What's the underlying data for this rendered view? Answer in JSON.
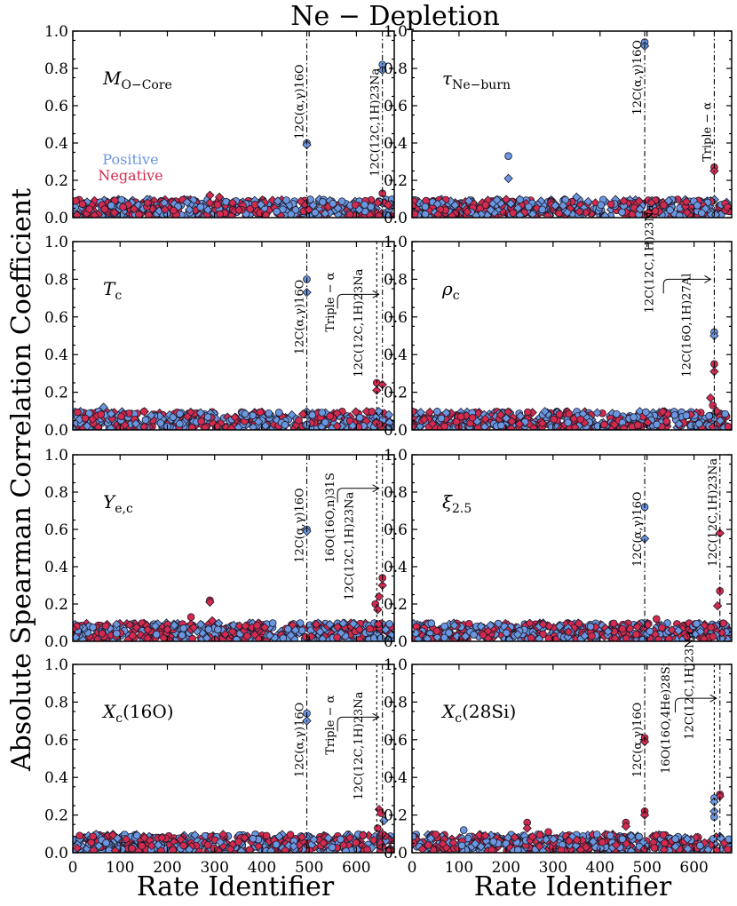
{
  "title": "Ne − Depletion",
  "xlabel": "Rate Identifier",
  "ylabel": "Absolute Spearman Correlation Coefficient",
  "legend": {
    "positive": "Positive",
    "negative": "Negative"
  },
  "colors": {
    "positive": "#6b96e0",
    "negative": "#d42a4e",
    "edge": "#1a1a2a"
  },
  "axes": {
    "xlim": [
      0,
      680
    ],
    "ylim": [
      0,
      1.0
    ],
    "xticks": [
      "0",
      "100",
      "200",
      "300",
      "400",
      "500",
      "600"
    ],
    "xtick_values": [
      0,
      100,
      200,
      300,
      400,
      500,
      600
    ],
    "yticks": [
      "0.0",
      "0.2",
      "0.4",
      "0.6",
      "0.8",
      "1.0"
    ],
    "ytick_values": [
      0,
      0.2,
      0.4,
      0.6,
      0.8,
      1.0
    ]
  },
  "chart_data": [
    {
      "type": "scatter",
      "panel": "M_O-Core",
      "label_main": "M",
      "label_sub": "O−Core",
      "vlines": [
        {
          "x": 495,
          "style": "dashdot"
        },
        {
          "x": 655,
          "style": "dashdot"
        }
      ],
      "annotations": [
        {
          "text": "12C(α,γ)16O",
          "x": 495,
          "y": 0.42
        },
        {
          "text": "12C(12C,1H)23Na",
          "x": 655,
          "y": 0.22
        }
      ],
      "highlights": [
        {
          "x": 495,
          "y": 0.4,
          "sign": "positive",
          "marker": "circle"
        },
        {
          "x": 495,
          "y": 0.39,
          "sign": "positive",
          "marker": "diamond"
        },
        {
          "x": 655,
          "y": 0.82,
          "sign": "positive",
          "marker": "circle"
        },
        {
          "x": 655,
          "y": 0.79,
          "sign": "positive",
          "marker": "diamond"
        },
        {
          "x": 655,
          "y": 0.13,
          "sign": "negative",
          "marker": "circle"
        },
        {
          "x": 290,
          "y": 0.12,
          "sign": "negative",
          "marker": "diamond"
        },
        {
          "x": 310,
          "y": 0.11,
          "sign": "negative",
          "marker": "diamond"
        }
      ],
      "background_max": 0.09,
      "legend": true
    },
    {
      "type": "scatter",
      "panel": "tau_Ne-burn",
      "label_main": "τ",
      "label_sub": "Ne−burn",
      "vlines": [
        {
          "x": 495,
          "style": "dashdot"
        },
        {
          "x": 643,
          "style": "dashdot"
        }
      ],
      "annotations": [
        {
          "text": "12C(α,γ)16O",
          "x": 495,
          "y": 0.55
        },
        {
          "text": "Triple − α",
          "x": 643,
          "y": 0.3
        }
      ],
      "highlights": [
        {
          "x": 495,
          "y": 0.94,
          "sign": "positive",
          "marker": "circle"
        },
        {
          "x": 495,
          "y": 0.92,
          "sign": "positive",
          "marker": "diamond"
        },
        {
          "x": 205,
          "y": 0.33,
          "sign": "positive",
          "marker": "circle"
        },
        {
          "x": 205,
          "y": 0.21,
          "sign": "positive",
          "marker": "diamond"
        },
        {
          "x": 643,
          "y": 0.27,
          "sign": "negative",
          "marker": "circle"
        },
        {
          "x": 643,
          "y": 0.25,
          "sign": "negative",
          "marker": "diamond"
        },
        {
          "x": 350,
          "y": 0.11,
          "sign": "positive",
          "marker": "diamond"
        }
      ],
      "background_max": 0.09
    },
    {
      "type": "scatter",
      "panel": "T_c",
      "label_main": "T",
      "label_sub": "c",
      "vlines": [
        {
          "x": 495,
          "style": "dashdot"
        },
        {
          "x": 643,
          "style": "dashed"
        },
        {
          "x": 655,
          "style": "dashdot"
        }
      ],
      "annotations": [
        {
          "text": "12C(α,γ)16O",
          "x": 495,
          "y": 0.4
        },
        {
          "text": "Triple − α",
          "x": 560,
          "y": 0.52
        },
        {
          "text": "12C(12C,1H)23Na",
          "x": 620,
          "y": 0.28
        }
      ],
      "highlights": [
        {
          "x": 495,
          "y": 0.8,
          "sign": "positive",
          "marker": "circle"
        },
        {
          "x": 495,
          "y": 0.73,
          "sign": "positive",
          "marker": "diamond"
        },
        {
          "x": 643,
          "y": 0.25,
          "sign": "negative",
          "marker": "circle"
        },
        {
          "x": 643,
          "y": 0.21,
          "sign": "negative",
          "marker": "diamond"
        },
        {
          "x": 655,
          "y": 0.24,
          "sign": "negative",
          "marker": "diamond"
        },
        {
          "x": 65,
          "y": 0.12,
          "sign": "positive",
          "marker": "diamond"
        }
      ],
      "arrow": {
        "from_x": 560,
        "to_x": 655,
        "y": 0.72
      },
      "background_max": 0.09
    },
    {
      "type": "scatter",
      "panel": "rho_c",
      "label_main": "ρ",
      "label_sub": "c",
      "vlines": [
        {
          "x": 643,
          "style": "dashdot"
        }
      ],
      "annotations": [
        {
          "text": "12C(12C,1H)23Na",
          "x": 520,
          "y": 0.62
        },
        {
          "text": "12C(16O,1H)27Al",
          "x": 600,
          "y": 0.28
        }
      ],
      "highlights": [
        {
          "x": 643,
          "y": 0.52,
          "sign": "positive",
          "marker": "circle"
        },
        {
          "x": 643,
          "y": 0.5,
          "sign": "positive",
          "marker": "diamond"
        },
        {
          "x": 643,
          "y": 0.35,
          "sign": "negative",
          "marker": "circle"
        },
        {
          "x": 643,
          "y": 0.31,
          "sign": "negative",
          "marker": "diamond"
        },
        {
          "x": 635,
          "y": 0.17,
          "sign": "negative",
          "marker": "diamond"
        },
        {
          "x": 640,
          "y": 0.13,
          "sign": "negative",
          "marker": "circle"
        },
        {
          "x": 648,
          "y": 0.1,
          "sign": "negative",
          "marker": "diamond"
        }
      ],
      "arrow": {
        "from_x": 535,
        "to_x": 643,
        "y": 0.8
      },
      "background_max": 0.09
    },
    {
      "type": "scatter",
      "panel": "Y_e,c",
      "label_main": "Y",
      "label_sub": "e,c",
      "vlines": [
        {
          "x": 495,
          "style": "dashdot"
        },
        {
          "x": 643,
          "style": "dashed"
        },
        {
          "x": 655,
          "style": "dashdot"
        }
      ],
      "annotations": [
        {
          "text": "12C(α,γ)16O",
          "x": 495,
          "y": 0.42
        },
        {
          "text": "16O(16O,n)31S",
          "x": 560,
          "y": 0.42
        },
        {
          "text": "12C(12C,1H)23Na",
          "x": 600,
          "y": 0.22
        }
      ],
      "highlights": [
        {
          "x": 495,
          "y": 0.6,
          "sign": "positive",
          "marker": "circle"
        },
        {
          "x": 495,
          "y": 0.59,
          "sign": "positive",
          "marker": "diamond"
        },
        {
          "x": 655,
          "y": 0.34,
          "sign": "negative",
          "marker": "circle"
        },
        {
          "x": 655,
          "y": 0.3,
          "sign": "negative",
          "marker": "diamond"
        },
        {
          "x": 648,
          "y": 0.24,
          "sign": "negative",
          "marker": "diamond"
        },
        {
          "x": 640,
          "y": 0.2,
          "sign": "negative",
          "marker": "circle"
        },
        {
          "x": 645,
          "y": 0.17,
          "sign": "negative",
          "marker": "diamond"
        },
        {
          "x": 290,
          "y": 0.22,
          "sign": "negative",
          "marker": "circle"
        },
        {
          "x": 290,
          "y": 0.21,
          "sign": "negative",
          "marker": "diamond"
        },
        {
          "x": 250,
          "y": 0.13,
          "sign": "negative",
          "marker": "circle"
        },
        {
          "x": 295,
          "y": 0.11,
          "sign": "negative",
          "marker": "diamond"
        }
      ],
      "arrow": {
        "from_x": 560,
        "to_x": 655,
        "y": 0.82
      },
      "background_max": 0.09
    },
    {
      "type": "scatter",
      "panel": "xi_2.5",
      "label_main": "ξ",
      "label_sub": "2.5",
      "vlines": [
        {
          "x": 495,
          "style": "dashdot"
        },
        {
          "x": 655,
          "style": "dashdot"
        }
      ],
      "annotations": [
        {
          "text": "12C(α,γ)16O",
          "x": 495,
          "y": 0.4
        },
        {
          "text": "12C(12C,1H)23Na",
          "x": 655,
          "y": 0.4
        }
      ],
      "highlights": [
        {
          "x": 495,
          "y": 0.72,
          "sign": "positive",
          "marker": "circle"
        },
        {
          "x": 495,
          "y": 0.55,
          "sign": "positive",
          "marker": "diamond"
        },
        {
          "x": 655,
          "y": 0.58,
          "sign": "negative",
          "marker": "diamond"
        },
        {
          "x": 655,
          "y": 0.27,
          "sign": "negative",
          "marker": "circle"
        },
        {
          "x": 650,
          "y": 0.19,
          "sign": "negative",
          "marker": "diamond"
        },
        {
          "x": 520,
          "y": 0.12,
          "sign": "negative",
          "marker": "circle"
        }
      ],
      "background_max": 0.09
    },
    {
      "type": "scatter",
      "panel": "X_c(16O)",
      "label_main": "X",
      "label_sub": "c",
      "label_suffix": "(16O)",
      "vlines": [
        {
          "x": 495,
          "style": "dashdot"
        },
        {
          "x": 643,
          "style": "dashed"
        },
        {
          "x": 655,
          "style": "dashdot"
        }
      ],
      "annotations": [
        {
          "text": "12C(α,γ)16O",
          "x": 495,
          "y": 0.4
        },
        {
          "text": "Triple − α",
          "x": 560,
          "y": 0.52
        },
        {
          "text": "12C(12C,1H)23Na",
          "x": 620,
          "y": 0.28
        }
      ],
      "highlights": [
        {
          "x": 495,
          "y": 0.74,
          "sign": "positive",
          "marker": "circle"
        },
        {
          "x": 495,
          "y": 0.7,
          "sign": "positive",
          "marker": "diamond"
        },
        {
          "x": 648,
          "y": 0.23,
          "sign": "negative",
          "marker": "diamond"
        },
        {
          "x": 652,
          "y": 0.21,
          "sign": "negative",
          "marker": "circle"
        },
        {
          "x": 658,
          "y": 0.17,
          "sign": "positive",
          "marker": "diamond"
        },
        {
          "x": 645,
          "y": 0.13,
          "sign": "negative",
          "marker": "circle"
        },
        {
          "x": 655,
          "y": 0.1,
          "sign": "negative",
          "marker": "diamond"
        }
      ],
      "arrow": {
        "from_x": 560,
        "to_x": 655,
        "y": 0.72
      },
      "background_max": 0.09
    },
    {
      "type": "scatter",
      "panel": "X_c(28Si)",
      "label_main": "X",
      "label_sub": "c",
      "label_suffix": "(28Si)",
      "vlines": [
        {
          "x": 495,
          "style": "dashdot"
        },
        {
          "x": 643,
          "style": "dashed"
        },
        {
          "x": 655,
          "style": "dashdot"
        }
      ],
      "annotations": [
        {
          "text": "12C(α,γ)16O",
          "x": 495,
          "y": 0.4
        },
        {
          "text": "16O(16O,4He)28Si",
          "x": 555,
          "y": 0.42
        },
        {
          "text": "12C(12C,1H)23Na",
          "x": 605,
          "y": 0.6
        }
      ],
      "highlights": [
        {
          "x": 495,
          "y": 0.61,
          "sign": "negative",
          "marker": "circle"
        },
        {
          "x": 495,
          "y": 0.59,
          "sign": "negative",
          "marker": "diamond"
        },
        {
          "x": 495,
          "y": 0.22,
          "sign": "negative",
          "marker": "circle"
        },
        {
          "x": 495,
          "y": 0.2,
          "sign": "negative",
          "marker": "diamond"
        },
        {
          "x": 655,
          "y": 0.31,
          "sign": "negative",
          "marker": "circle"
        },
        {
          "x": 655,
          "y": 0.3,
          "sign": "negative",
          "marker": "diamond"
        },
        {
          "x": 643,
          "y": 0.29,
          "sign": "positive",
          "marker": "circle"
        },
        {
          "x": 643,
          "y": 0.27,
          "sign": "positive",
          "marker": "diamond"
        },
        {
          "x": 643,
          "y": 0.22,
          "sign": "positive",
          "marker": "diamond"
        },
        {
          "x": 643,
          "y": 0.19,
          "sign": "positive",
          "marker": "circle"
        },
        {
          "x": 245,
          "y": 0.16,
          "sign": "negative",
          "marker": "circle"
        },
        {
          "x": 245,
          "y": 0.13,
          "sign": "negative",
          "marker": "diamond"
        },
        {
          "x": 455,
          "y": 0.16,
          "sign": "negative",
          "marker": "circle"
        },
        {
          "x": 455,
          "y": 0.14,
          "sign": "negative",
          "marker": "diamond"
        },
        {
          "x": 110,
          "y": 0.12,
          "sign": "positive",
          "marker": "circle"
        },
        {
          "x": 290,
          "y": 0.11,
          "sign": "negative",
          "marker": "circle"
        }
      ],
      "arrow": {
        "from_x": 560,
        "to_x": 655,
        "y": 0.82
      },
      "background_max": 0.09
    }
  ]
}
